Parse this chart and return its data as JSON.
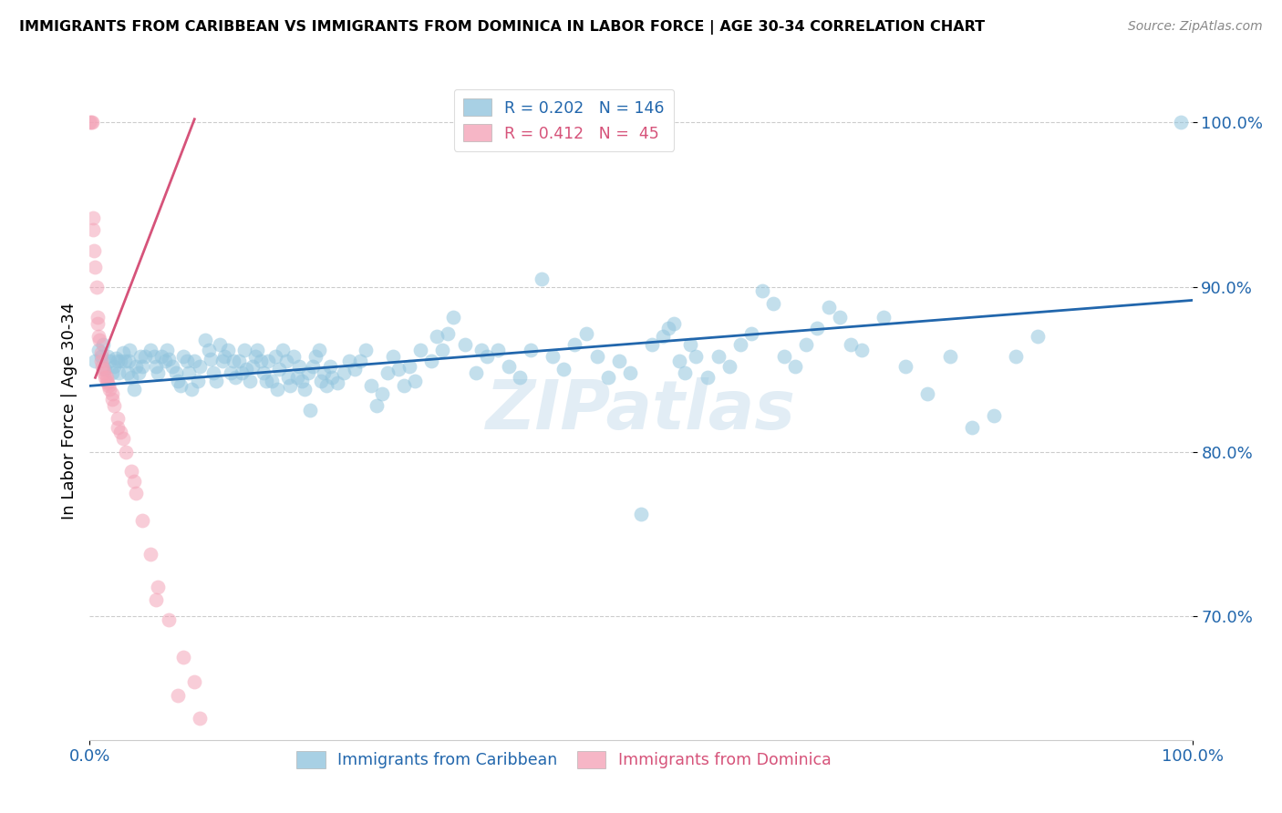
{
  "title": "IMMIGRANTS FROM CARIBBEAN VS IMMIGRANTS FROM DOMINICA IN LABOR FORCE | AGE 30-34 CORRELATION CHART",
  "source": "Source: ZipAtlas.com",
  "ylabel": "In Labor Force | Age 30-34",
  "y_tick_labels": [
    "70.0%",
    "80.0%",
    "90.0%",
    "100.0%"
  ],
  "y_tick_values": [
    0.7,
    0.8,
    0.9,
    1.0
  ],
  "xlim": [
    0.0,
    1.0
  ],
  "ylim": [
    0.625,
    1.025
  ],
  "legend_bottom_labels": [
    "Immigrants from Caribbean",
    "Immigrants from Dominica"
  ],
  "blue_color": "#92c5de",
  "pink_color": "#f4a4b8",
  "line_blue": "#2166ac",
  "line_pink": "#d6537a",
  "watermark": "ZIPatlas",
  "blue_scatter": [
    [
      0.005,
      0.855
    ],
    [
      0.008,
      0.862
    ],
    [
      0.01,
      0.858
    ],
    [
      0.012,
      0.865
    ],
    [
      0.014,
      0.85
    ],
    [
      0.016,
      0.858
    ],
    [
      0.018,
      0.855
    ],
    [
      0.02,
      0.848
    ],
    [
      0.022,
      0.852
    ],
    [
      0.024,
      0.857
    ],
    [
      0.025,
      0.855
    ],
    [
      0.026,
      0.848
    ],
    [
      0.028,
      0.855
    ],
    [
      0.03,
      0.86
    ],
    [
      0.032,
      0.855
    ],
    [
      0.034,
      0.848
    ],
    [
      0.035,
      0.855
    ],
    [
      0.036,
      0.862
    ],
    [
      0.038,
      0.845
    ],
    [
      0.04,
      0.838
    ],
    [
      0.042,
      0.852
    ],
    [
      0.044,
      0.848
    ],
    [
      0.046,
      0.858
    ],
    [
      0.048,
      0.852
    ],
    [
      0.05,
      0.858
    ],
    [
      0.055,
      0.862
    ],
    [
      0.058,
      0.858
    ],
    [
      0.06,
      0.852
    ],
    [
      0.062,
      0.848
    ],
    [
      0.065,
      0.858
    ],
    [
      0.068,
      0.855
    ],
    [
      0.07,
      0.862
    ],
    [
      0.072,
      0.856
    ],
    [
      0.075,
      0.852
    ],
    [
      0.078,
      0.848
    ],
    [
      0.08,
      0.843
    ],
    [
      0.082,
      0.84
    ],
    [
      0.085,
      0.858
    ],
    [
      0.088,
      0.855
    ],
    [
      0.09,
      0.848
    ],
    [
      0.092,
      0.838
    ],
    [
      0.095,
      0.855
    ],
    [
      0.098,
      0.843
    ],
    [
      0.1,
      0.852
    ],
    [
      0.105,
      0.868
    ],
    [
      0.108,
      0.862
    ],
    [
      0.11,
      0.856
    ],
    [
      0.112,
      0.848
    ],
    [
      0.115,
      0.843
    ],
    [
      0.118,
      0.865
    ],
    [
      0.12,
      0.855
    ],
    [
      0.122,
      0.858
    ],
    [
      0.125,
      0.862
    ],
    [
      0.128,
      0.848
    ],
    [
      0.13,
      0.855
    ],
    [
      0.132,
      0.845
    ],
    [
      0.135,
      0.855
    ],
    [
      0.138,
      0.848
    ],
    [
      0.14,
      0.862
    ],
    [
      0.142,
      0.85
    ],
    [
      0.145,
      0.843
    ],
    [
      0.148,
      0.852
    ],
    [
      0.15,
      0.858
    ],
    [
      0.152,
      0.862
    ],
    [
      0.155,
      0.855
    ],
    [
      0.158,
      0.848
    ],
    [
      0.16,
      0.843
    ],
    [
      0.162,
      0.855
    ],
    [
      0.165,
      0.843
    ],
    [
      0.168,
      0.858
    ],
    [
      0.17,
      0.838
    ],
    [
      0.172,
      0.85
    ],
    [
      0.175,
      0.862
    ],
    [
      0.178,
      0.855
    ],
    [
      0.18,
      0.845
    ],
    [
      0.182,
      0.84
    ],
    [
      0.185,
      0.858
    ],
    [
      0.188,
      0.845
    ],
    [
      0.19,
      0.852
    ],
    [
      0.192,
      0.843
    ],
    [
      0.195,
      0.838
    ],
    [
      0.198,
      0.848
    ],
    [
      0.2,
      0.825
    ],
    [
      0.202,
      0.852
    ],
    [
      0.205,
      0.858
    ],
    [
      0.208,
      0.862
    ],
    [
      0.21,
      0.843
    ],
    [
      0.212,
      0.848
    ],
    [
      0.215,
      0.84
    ],
    [
      0.218,
      0.852
    ],
    [
      0.22,
      0.845
    ],
    [
      0.225,
      0.842
    ],
    [
      0.23,
      0.848
    ],
    [
      0.235,
      0.855
    ],
    [
      0.24,
      0.85
    ],
    [
      0.245,
      0.855
    ],
    [
      0.25,
      0.862
    ],
    [
      0.255,
      0.84
    ],
    [
      0.26,
      0.828
    ],
    [
      0.265,
      0.835
    ],
    [
      0.27,
      0.848
    ],
    [
      0.275,
      0.858
    ],
    [
      0.28,
      0.85
    ],
    [
      0.285,
      0.84
    ],
    [
      0.29,
      0.852
    ],
    [
      0.295,
      0.843
    ],
    [
      0.3,
      0.862
    ],
    [
      0.31,
      0.855
    ],
    [
      0.315,
      0.87
    ],
    [
      0.32,
      0.862
    ],
    [
      0.325,
      0.872
    ],
    [
      0.33,
      0.882
    ],
    [
      0.34,
      0.865
    ],
    [
      0.35,
      0.848
    ],
    [
      0.355,
      0.862
    ],
    [
      0.36,
      0.858
    ],
    [
      0.37,
      0.862
    ],
    [
      0.38,
      0.852
    ],
    [
      0.39,
      0.845
    ],
    [
      0.4,
      0.862
    ],
    [
      0.41,
      0.905
    ],
    [
      0.42,
      0.858
    ],
    [
      0.43,
      0.85
    ],
    [
      0.44,
      0.865
    ],
    [
      0.45,
      0.872
    ],
    [
      0.46,
      0.858
    ],
    [
      0.47,
      0.845
    ],
    [
      0.48,
      0.855
    ],
    [
      0.49,
      0.848
    ],
    [
      0.5,
      0.762
    ],
    [
      0.51,
      0.865
    ],
    [
      0.52,
      0.87
    ],
    [
      0.525,
      0.875
    ],
    [
      0.53,
      0.878
    ],
    [
      0.535,
      0.855
    ],
    [
      0.54,
      0.848
    ],
    [
      0.545,
      0.865
    ],
    [
      0.55,
      0.858
    ],
    [
      0.56,
      0.845
    ],
    [
      0.57,
      0.858
    ],
    [
      0.58,
      0.852
    ],
    [
      0.59,
      0.865
    ],
    [
      0.6,
      0.872
    ],
    [
      0.61,
      0.898
    ],
    [
      0.62,
      0.89
    ],
    [
      0.63,
      0.858
    ],
    [
      0.64,
      0.852
    ],
    [
      0.65,
      0.865
    ],
    [
      0.66,
      0.875
    ],
    [
      0.67,
      0.888
    ],
    [
      0.68,
      0.882
    ],
    [
      0.69,
      0.865
    ],
    [
      0.7,
      0.862
    ],
    [
      0.72,
      0.882
    ],
    [
      0.74,
      0.852
    ],
    [
      0.76,
      0.835
    ],
    [
      0.78,
      0.858
    ],
    [
      0.8,
      0.815
    ],
    [
      0.82,
      0.822
    ],
    [
      0.84,
      0.858
    ],
    [
      0.86,
      0.87
    ],
    [
      0.99,
      1.0
    ]
  ],
  "pink_scatter": [
    [
      0.0,
      1.0
    ],
    [
      0.001,
      1.0
    ],
    [
      0.002,
      1.0
    ],
    [
      0.003,
      0.942
    ],
    [
      0.004,
      0.922
    ],
    [
      0.005,
      0.912
    ],
    [
      0.006,
      0.9
    ],
    [
      0.007,
      0.882
    ],
    [
      0.008,
      0.87
    ],
    [
      0.009,
      0.868
    ],
    [
      0.01,
      0.855
    ],
    [
      0.011,
      0.852
    ],
    [
      0.012,
      0.85
    ],
    [
      0.013,
      0.848
    ],
    [
      0.014,
      0.845
    ],
    [
      0.015,
      0.845
    ],
    [
      0.016,
      0.842
    ],
    [
      0.017,
      0.84
    ],
    [
      0.018,
      0.838
    ],
    [
      0.02,
      0.835
    ],
    [
      0.022,
      0.828
    ],
    [
      0.025,
      0.82
    ],
    [
      0.028,
      0.812
    ],
    [
      0.03,
      0.808
    ],
    [
      0.033,
      0.8
    ],
    [
      0.038,
      0.788
    ],
    [
      0.042,
      0.775
    ],
    [
      0.048,
      0.758
    ],
    [
      0.055,
      0.738
    ],
    [
      0.062,
      0.718
    ],
    [
      0.072,
      0.698
    ],
    [
      0.085,
      0.675
    ],
    [
      0.095,
      0.66
    ],
    [
      0.01,
      0.86
    ],
    [
      0.02,
      0.832
    ],
    [
      0.003,
      0.935
    ],
    [
      0.007,
      0.878
    ],
    [
      0.015,
      0.843
    ],
    [
      0.025,
      0.815
    ],
    [
      0.04,
      0.782
    ],
    [
      0.06,
      0.71
    ],
    [
      0.08,
      0.652
    ],
    [
      0.1,
      0.638
    ]
  ],
  "blue_line_x": [
    0.0,
    1.0
  ],
  "blue_line_y": [
    0.84,
    0.892
  ],
  "pink_line_x": [
    0.005,
    0.095
  ],
  "pink_line_y": [
    0.845,
    1.002
  ]
}
